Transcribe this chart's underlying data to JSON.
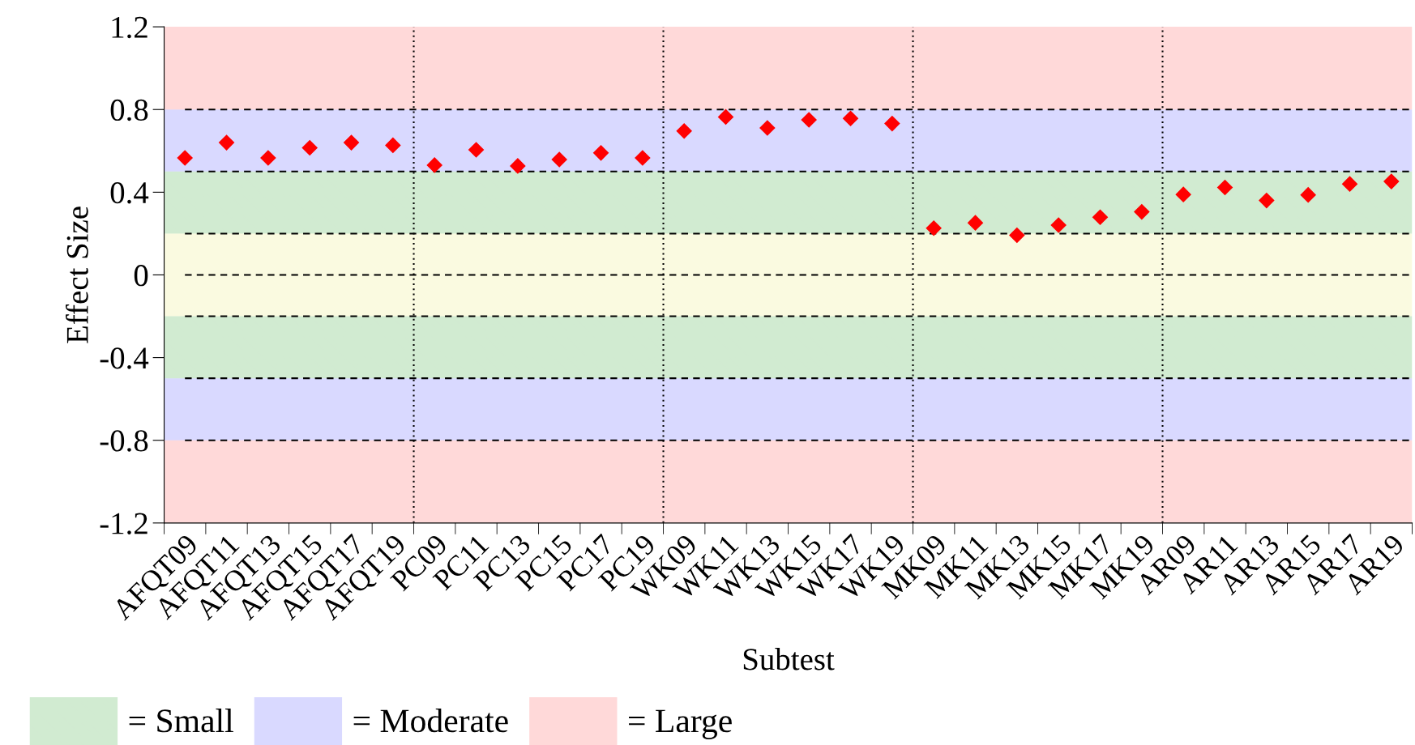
{
  "chart_data": {
    "type": "scatter",
    "xlabel": "Subtest",
    "ylabel": "Effect Size",
    "categories": [
      "AFQT09",
      "AFQT11",
      "AFQT13",
      "AFQT15",
      "AFQT17",
      "AFQT19",
      "PC09",
      "PC11",
      "PC13",
      "PC15",
      "PC17",
      "PC19",
      "WK09",
      "WK11",
      "WK13",
      "WK15",
      "WK17",
      "WK19",
      "MK09",
      "MK11",
      "MK13",
      "MK15",
      "MK17",
      "MK19",
      "AR09",
      "AR11",
      "AR13",
      "AR15",
      "AR17",
      "AR19"
    ],
    "values": [
      0.566,
      0.64,
      0.566,
      0.615,
      0.64,
      0.627,
      0.531,
      0.605,
      0.527,
      0.558,
      0.59,
      0.566,
      0.696,
      0.764,
      0.711,
      0.75,
      0.757,
      0.732,
      0.226,
      0.252,
      0.192,
      0.241,
      0.279,
      0.305,
      0.389,
      0.423,
      0.36,
      0.387,
      0.44,
      0.452
    ],
    "color": "#ff0000",
    "marker": "diamond",
    "ylim": [
      -1.2,
      1.2
    ],
    "yticks": [
      1.2,
      0.8,
      0.4,
      0,
      -0.4,
      -0.8,
      -1.2
    ],
    "grid": false,
    "legend": "bottom left",
    "bands": [
      {
        "axis": "y",
        "from": 0.2,
        "to": 0.5,
        "label": "= Small",
        "color": "#66bb66"
      },
      {
        "axis": "y",
        "from": 0.5,
        "to": 0.8,
        "label": "= Moderate",
        "color": "#8080ff"
      },
      {
        "axis": "y",
        "from": 0.8,
        "to": 1.2,
        "label": "= Large",
        "color": "#ff8080"
      },
      {
        "axis": "y",
        "from": -0.2,
        "to": 0.2,
        "color": "#eeee99"
      },
      {
        "axis": "y",
        "from": -0.5,
        "to": -0.2,
        "color": "#66bb66"
      },
      {
        "axis": "y",
        "from": -0.8,
        "to": -0.5,
        "color": "#8080ff"
      },
      {
        "axis": "y",
        "from": -1.2,
        "to": -0.8,
        "color": "#ff8080"
      }
    ],
    "ref_lines": [
      {
        "axis": "y",
        "value": 0.8,
        "line_style": "dashed",
        "color": "#000000"
      },
      {
        "axis": "y",
        "value": 0.5,
        "line_style": "dashed",
        "color": "#000000"
      },
      {
        "axis": "y",
        "value": 0.2,
        "line_style": "dashed",
        "color": "#000000"
      },
      {
        "axis": "y",
        "value": 0,
        "line_style": "dashed",
        "color": "#000000"
      },
      {
        "axis": "y",
        "value": -0.2,
        "line_style": "dashed",
        "color": "#000000"
      },
      {
        "axis": "y",
        "value": -0.5,
        "line_style": "dashed",
        "color": "#000000"
      },
      {
        "axis": "y",
        "value": -0.8,
        "line_style": "dashed",
        "color": "#000000"
      }
    ]
  }
}
